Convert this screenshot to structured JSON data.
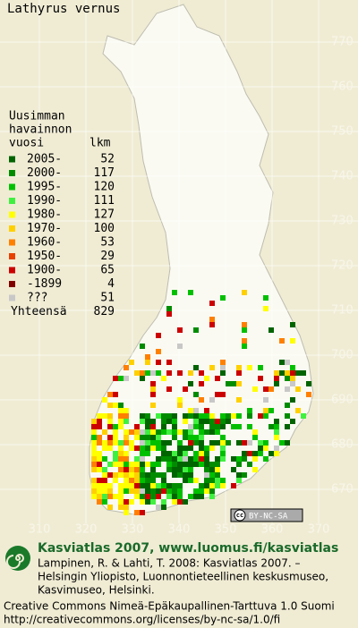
{
  "map": {
    "title": "Lathyrus vernus",
    "yticks": [
      770,
      760,
      750,
      740,
      730,
      720,
      710,
      700,
      690,
      680,
      670
    ],
    "xticks": [
      310,
      320,
      330,
      340,
      350,
      360,
      370
    ],
    "badge": "BY-NC-SA",
    "legend": {
      "heading": [
        "Uusimman",
        "havainnon",
        "vuosi"
      ],
      "count_heading": "lkm",
      "rows": [
        {
          "label": "2005-",
          "count": 52,
          "color": "#006400"
        },
        {
          "label": "2000-",
          "count": 117,
          "color": "#008c00"
        },
        {
          "label": "1995-",
          "count": 120,
          "color": "#00c000"
        },
        {
          "label": "1990-",
          "count": 111,
          "color": "#40f040"
        },
        {
          "label": "1980-",
          "count": 127,
          "color": "#ffff00"
        },
        {
          "label": "1970-",
          "count": 100,
          "color": "#ffd000"
        },
        {
          "label": "1960-",
          "count": 53,
          "color": "#ff8000"
        },
        {
          "label": "1950-",
          "count": 29,
          "color": "#e84000"
        },
        {
          "label": "1900-",
          "count": 65,
          "color": "#cc0000"
        },
        {
          "label": "-1899",
          "count": 4,
          "color": "#800000"
        },
        {
          "label": "???",
          "count": 51,
          "color": "#c8c8c8"
        }
      ],
      "total_label": "Yhteensä",
      "total": 829
    }
  },
  "footer": {
    "headline": "Kasviatlas 2007, www.luomus.fi/kasviatlas",
    "citation": [
      "Lampinen, R. & Lahti, T. 2008: Kasviatlas 2007. –",
      "Helsingin Yliopisto, Luonnontieteellinen keskusmuseo,",
      "Kasvimuseo, Helsinki."
    ],
    "license": [
      "Creative Commons Nimeä-Epäkaupallinen-Tarttuva 1.0 Suomi",
      "http://creativecommons.org/licenses/by-nc-sa/1.0/fi"
    ]
  }
}
